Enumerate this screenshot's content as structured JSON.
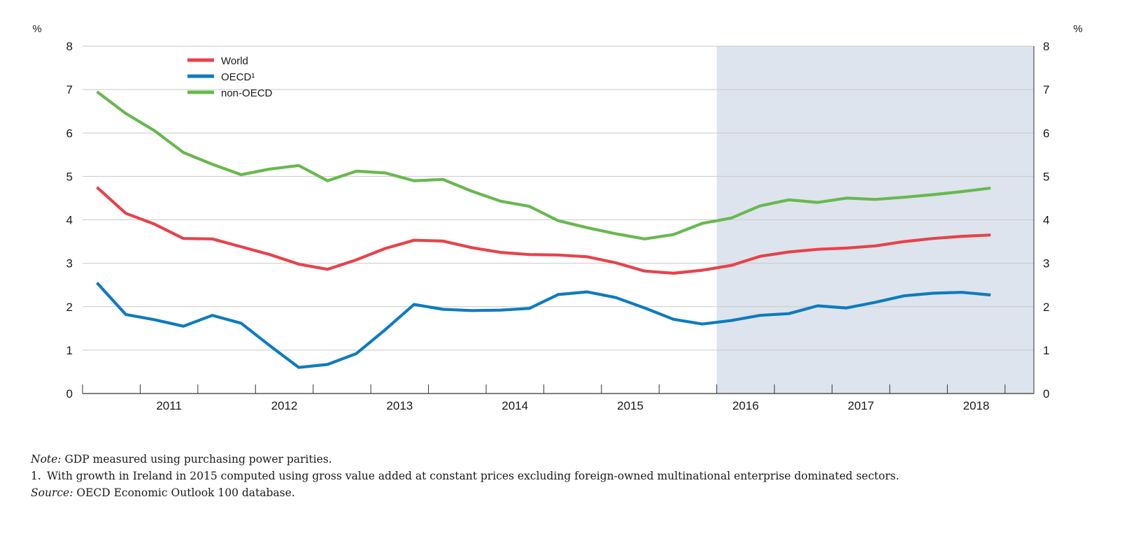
{
  "chart_data": {
    "type": "line",
    "title": "",
    "left_unit": "%",
    "right_unit": "%",
    "ylim": [
      0,
      8
    ],
    "y_ticks": [
      "0",
      "1",
      "2",
      "3",
      "4",
      "5",
      "6",
      "7",
      "8"
    ],
    "x_labels": [
      "2011",
      "2012",
      "2013",
      "2014",
      "2015",
      "2016",
      "2017",
      "2018"
    ],
    "x_start": 2010.5,
    "x_end": 2018.75,
    "shaded_region": {
      "from": 2016.0,
      "to": 2018.75
    },
    "grid": true,
    "legend_placement": "top-left",
    "series": [
      {
        "name": "World",
        "color": "#e8424a",
        "points": [
          [
            2010.625,
            4.75
          ],
          [
            2010.875,
            4.15
          ],
          [
            2011.125,
            3.9
          ],
          [
            2011.375,
            3.57
          ],
          [
            2011.625,
            3.56
          ],
          [
            2011.875,
            3.38
          ],
          [
            2012.125,
            3.2
          ],
          [
            2012.375,
            2.98
          ],
          [
            2012.625,
            2.86
          ],
          [
            2012.875,
            3.08
          ],
          [
            2013.125,
            3.34
          ],
          [
            2013.375,
            3.53
          ],
          [
            2013.625,
            3.51
          ],
          [
            2013.875,
            3.36
          ],
          [
            2014.125,
            3.25
          ],
          [
            2014.375,
            3.2
          ],
          [
            2014.625,
            3.19
          ],
          [
            2014.875,
            3.15
          ],
          [
            2015.125,
            3.01
          ],
          [
            2015.375,
            2.82
          ],
          [
            2015.625,
            2.77
          ],
          [
            2015.875,
            2.84
          ],
          [
            2016.125,
            2.95
          ],
          [
            2016.375,
            3.16
          ],
          [
            2016.625,
            3.26
          ],
          [
            2016.875,
            3.32
          ],
          [
            2017.125,
            3.35
          ],
          [
            2017.375,
            3.4
          ],
          [
            2017.625,
            3.5
          ],
          [
            2017.875,
            3.57
          ],
          [
            2018.125,
            3.62
          ],
          [
            2018.375,
            3.65
          ]
        ]
      },
      {
        "name": "OECD¹",
        "color": "#0e7bbf",
        "points": [
          [
            2010.625,
            2.55
          ],
          [
            2010.875,
            1.82
          ],
          [
            2011.125,
            1.7
          ],
          [
            2011.375,
            1.55
          ],
          [
            2011.625,
            1.8
          ],
          [
            2011.875,
            1.62
          ],
          [
            2012.125,
            1.1
          ],
          [
            2012.375,
            0.6
          ],
          [
            2012.625,
            0.67
          ],
          [
            2012.875,
            0.92
          ],
          [
            2013.125,
            1.47
          ],
          [
            2013.375,
            2.05
          ],
          [
            2013.625,
            1.94
          ],
          [
            2013.875,
            1.91
          ],
          [
            2014.125,
            1.92
          ],
          [
            2014.375,
            1.96
          ],
          [
            2014.625,
            2.28
          ],
          [
            2014.875,
            2.34
          ],
          [
            2015.125,
            2.21
          ],
          [
            2015.375,
            1.97
          ],
          [
            2015.625,
            1.71
          ],
          [
            2015.875,
            1.6
          ],
          [
            2016.125,
            1.68
          ],
          [
            2016.375,
            1.8
          ],
          [
            2016.625,
            1.84
          ],
          [
            2016.875,
            2.02
          ],
          [
            2017.125,
            1.97
          ],
          [
            2017.375,
            2.1
          ],
          [
            2017.625,
            2.25
          ],
          [
            2017.875,
            2.31
          ],
          [
            2018.125,
            2.33
          ],
          [
            2018.375,
            2.27
          ]
        ]
      },
      {
        "name": "non-OECD",
        "color": "#68b84e",
        "points": [
          [
            2010.625,
            6.95
          ],
          [
            2010.875,
            6.45
          ],
          [
            2011.125,
            6.05
          ],
          [
            2011.375,
            5.55
          ],
          [
            2011.625,
            5.28
          ],
          [
            2011.875,
            5.04
          ],
          [
            2012.125,
            5.17
          ],
          [
            2012.375,
            5.25
          ],
          [
            2012.625,
            4.9
          ],
          [
            2012.875,
            5.12
          ],
          [
            2013.125,
            5.08
          ],
          [
            2013.375,
            4.9
          ],
          [
            2013.625,
            4.93
          ],
          [
            2013.875,
            4.66
          ],
          [
            2014.125,
            4.43
          ],
          [
            2014.375,
            4.31
          ],
          [
            2014.625,
            3.98
          ],
          [
            2014.875,
            3.82
          ],
          [
            2015.125,
            3.68
          ],
          [
            2015.375,
            3.56
          ],
          [
            2015.625,
            3.66
          ],
          [
            2015.875,
            3.92
          ],
          [
            2016.125,
            4.04
          ],
          [
            2016.375,
            4.32
          ],
          [
            2016.625,
            4.46
          ],
          [
            2016.875,
            4.4
          ],
          [
            2017.125,
            4.5
          ],
          [
            2017.375,
            4.47
          ],
          [
            2017.625,
            4.52
          ],
          [
            2017.875,
            4.58
          ],
          [
            2018.125,
            4.65
          ],
          [
            2018.375,
            4.73
          ]
        ]
      }
    ]
  },
  "notes": {
    "note_label": "Note:",
    "note_text": "GDP measured using purchasing power parities.",
    "footnote_number": "1.",
    "footnote_text": "With growth in Ireland in 2015 computed using gross value added at constant prices excluding foreign-owned multinational enterprise dominated sectors.",
    "source_label": "Source:",
    "source_text": "OECD Economic Outlook 100 database."
  }
}
